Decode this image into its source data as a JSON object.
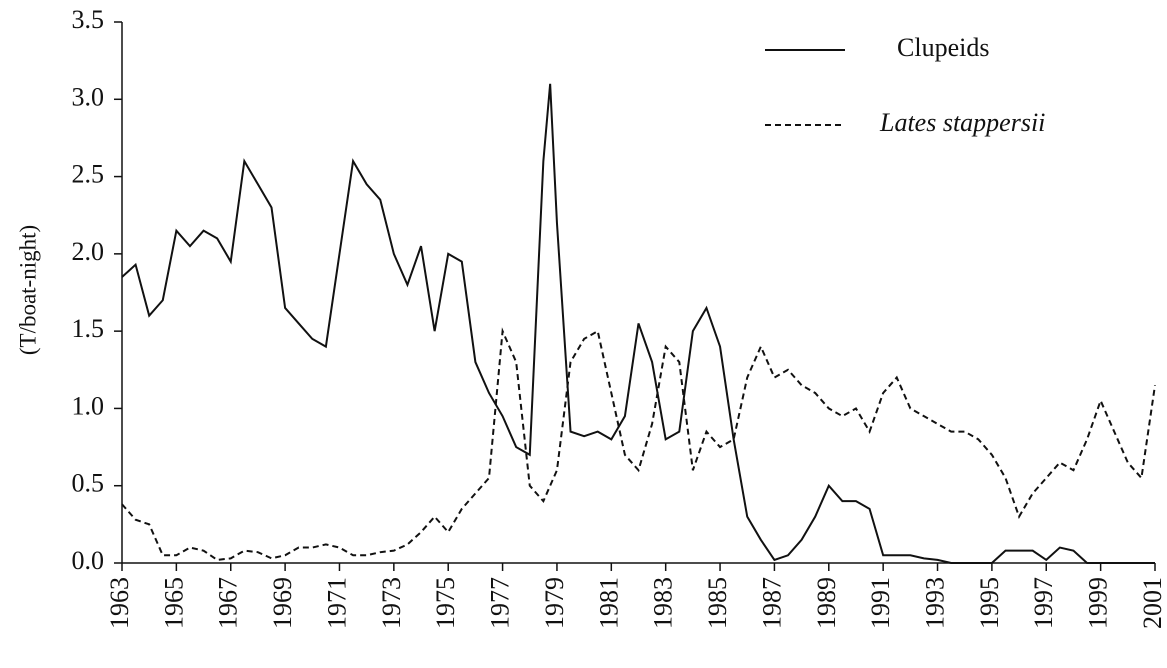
{
  "chart_data": {
    "type": "line",
    "ylabel": "(T/boat-night)",
    "x": [
      1963,
      1963.5,
      1964,
      1964.5,
      1965,
      1965.5,
      1966,
      1966.5,
      1967,
      1967.5,
      1968,
      1968.5,
      1969,
      1969.5,
      1970,
      1970.5,
      1971,
      1971.5,
      1972,
      1972.5,
      1973,
      1973.5,
      1974,
      1974.5,
      1975,
      1975.5,
      1976,
      1976.5,
      1977,
      1977.5,
      1978,
      1978.5,
      1978.75,
      1979,
      1979.5,
      1980,
      1980.5,
      1981,
      1981.5,
      1982,
      1982.5,
      1983,
      1983.5,
      1984,
      1984.5,
      1985,
      1985.5,
      1986,
      1986.5,
      1987,
      1987.5,
      1988,
      1988.5,
      1989,
      1989.5,
      1990,
      1990.5,
      1991,
      1991.5,
      1992,
      1992.5,
      1993,
      1993.5,
      1994,
      1994.5,
      1995,
      1995.5,
      1996,
      1996.5,
      1997,
      1997.5,
      1998,
      1998.5,
      1999,
      1999.5,
      2000,
      2000.5,
      2001
    ],
    "series": [
      {
        "name": "Clupeids",
        "color": "#111111",
        "linestyle": "solid",
        "values": [
          1.85,
          1.93,
          1.6,
          1.7,
          2.15,
          2.05,
          2.15,
          2.1,
          1.95,
          2.6,
          2.45,
          2.3,
          1.65,
          1.55,
          1.45,
          1.4,
          2.0,
          2.6,
          2.45,
          2.35,
          2.0,
          1.8,
          2.05,
          1.5,
          2.0,
          1.95,
          1.3,
          1.1,
          0.95,
          0.75,
          0.7,
          2.6,
          3.1,
          2.2,
          0.85,
          0.82,
          0.85,
          0.8,
          0.95,
          1.55,
          1.3,
          0.8,
          0.85,
          1.5,
          1.65,
          1.4,
          0.8,
          0.3,
          0.15,
          0.02,
          0.05,
          0.15,
          0.3,
          0.5,
          0.4,
          0.4,
          0.35,
          0.05,
          0.05,
          0.05,
          0.03,
          0.02,
          0,
          0,
          0,
          0,
          0.08,
          0.08,
          0.08,
          0.02,
          0.1,
          0.08,
          0,
          0,
          0,
          0,
          0,
          0
        ]
      },
      {
        "name": "Lates stappersii",
        "color": "#111111",
        "linestyle": "dashed",
        "italic": true,
        "values": [
          0.38,
          0.28,
          0.25,
          0.05,
          0.05,
          0.1,
          0.08,
          0.02,
          0.03,
          0.08,
          0.07,
          0.03,
          0.05,
          0.1,
          0.1,
          0.12,
          0.1,
          0.05,
          0.05,
          0.07,
          0.08,
          0.12,
          0.2,
          0.3,
          0.2,
          0.35,
          0.45,
          0.55,
          1.5,
          1.3,
          0.5,
          0.4,
          0.5,
          0.6,
          1.3,
          1.45,
          1.5,
          1.1,
          0.7,
          0.6,
          0.9,
          1.4,
          1.3,
          0.6,
          0.85,
          0.75,
          0.8,
          1.2,
          1.4,
          1.2,
          1.25,
          1.15,
          1.1,
          1.0,
          0.95,
          1.0,
          0.85,
          1.1,
          1.2,
          1.0,
          0.95,
          0.9,
          0.85,
          0.85,
          0.8,
          0.7,
          0.55,
          0.3,
          0.45,
          0.55,
          0.65,
          0.6,
          0.8,
          1.05,
          0.85,
          0.65,
          0.55,
          1.15
        ]
      }
    ],
    "xlim": [
      1963,
      2001
    ],
    "xticks": [
      1963,
      1965,
      1967,
      1969,
      1971,
      1973,
      1975,
      1977,
      1979,
      1981,
      1983,
      1985,
      1987,
      1989,
      1991,
      1993,
      1995,
      1997,
      1999,
      2001
    ],
    "ylim": [
      0,
      3.5
    ],
    "yticks": [
      {
        "value": 0,
        "label": "0.0"
      },
      0.5,
      {
        "value": 1,
        "label": "1.0"
      },
      1.5,
      {
        "value": 2,
        "label": "2.0"
      },
      2.5,
      {
        "value": 3,
        "label": "3.0"
      },
      3.5
    ],
    "grid": false,
    "legend": "top-right"
  }
}
